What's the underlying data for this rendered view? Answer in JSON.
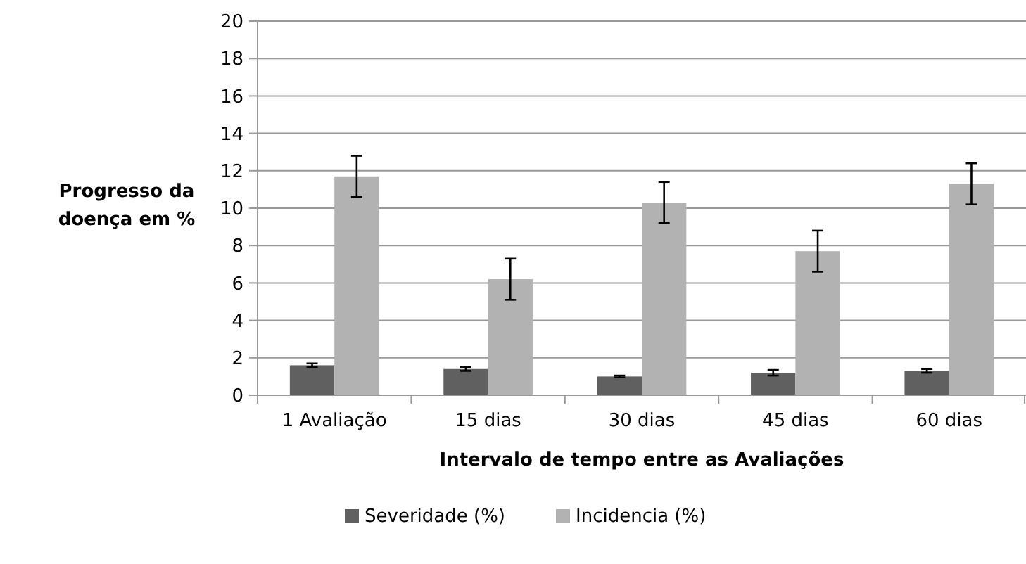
{
  "chart_data": {
    "type": "bar",
    "xlabel": "Intervalo de tempo entre as Avaliações",
    "ylabel": "Progresso da doença em %",
    "categories": [
      "1 Avaliação",
      "15 dias",
      "30 dias",
      "45 dias",
      "60 dias"
    ],
    "series": [
      {
        "name": "Severidade (%)",
        "color": "#606060",
        "values": [
          1.6,
          1.4,
          1.0,
          1.2,
          1.3
        ],
        "errors": [
          0.1,
          0.1,
          0.05,
          0.15,
          0.1
        ]
      },
      {
        "name": "Incidencia (%)",
        "color": "#b2b2b2",
        "values": [
          11.7,
          6.2,
          10.3,
          7.7,
          11.3
        ],
        "errors": [
          1.1,
          1.1,
          1.1,
          1.1,
          1.1
        ]
      }
    ],
    "ylim": [
      0,
      20
    ],
    "yticks": [
      0,
      2,
      4,
      6,
      8,
      10,
      12,
      14,
      16,
      18,
      20
    ],
    "grid": "y",
    "legend": "bottom"
  }
}
